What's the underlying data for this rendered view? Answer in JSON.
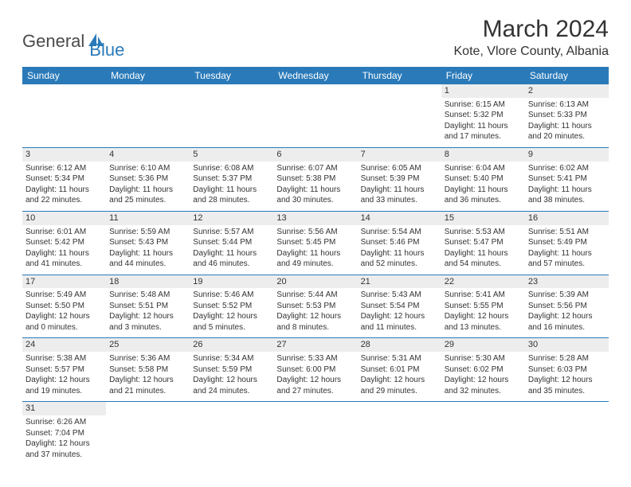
{
  "logo": {
    "text_general": "General",
    "text_blue": "Blue",
    "icon_color": "#2a7ab9"
  },
  "title": "March 2024",
  "location": "Kote, Vlore County, Albania",
  "colors": {
    "header_bg": "#2a7ab9",
    "header_text": "#ffffff",
    "daynum_bg": "#ededed",
    "row_border": "#2a7ab9",
    "body_text": "#333333",
    "page_bg": "#ffffff"
  },
  "typography": {
    "title_fontsize": 30,
    "location_fontsize": 16,
    "weekday_fontsize": 12,
    "cell_fontsize": 10,
    "logo_fontsize": 22
  },
  "weekdays": [
    "Sunday",
    "Monday",
    "Tuesday",
    "Wednesday",
    "Thursday",
    "Friday",
    "Saturday"
  ],
  "weeks": [
    [
      null,
      null,
      null,
      null,
      null,
      {
        "day": "1",
        "sunrise": "Sunrise: 6:15 AM",
        "sunset": "Sunset: 5:32 PM",
        "daylight1": "Daylight: 11 hours",
        "daylight2": "and 17 minutes."
      },
      {
        "day": "2",
        "sunrise": "Sunrise: 6:13 AM",
        "sunset": "Sunset: 5:33 PM",
        "daylight1": "Daylight: 11 hours",
        "daylight2": "and 20 minutes."
      }
    ],
    [
      {
        "day": "3",
        "sunrise": "Sunrise: 6:12 AM",
        "sunset": "Sunset: 5:34 PM",
        "daylight1": "Daylight: 11 hours",
        "daylight2": "and 22 minutes."
      },
      {
        "day": "4",
        "sunrise": "Sunrise: 6:10 AM",
        "sunset": "Sunset: 5:36 PM",
        "daylight1": "Daylight: 11 hours",
        "daylight2": "and 25 minutes."
      },
      {
        "day": "5",
        "sunrise": "Sunrise: 6:08 AM",
        "sunset": "Sunset: 5:37 PM",
        "daylight1": "Daylight: 11 hours",
        "daylight2": "and 28 minutes."
      },
      {
        "day": "6",
        "sunrise": "Sunrise: 6:07 AM",
        "sunset": "Sunset: 5:38 PM",
        "daylight1": "Daylight: 11 hours",
        "daylight2": "and 30 minutes."
      },
      {
        "day": "7",
        "sunrise": "Sunrise: 6:05 AM",
        "sunset": "Sunset: 5:39 PM",
        "daylight1": "Daylight: 11 hours",
        "daylight2": "and 33 minutes."
      },
      {
        "day": "8",
        "sunrise": "Sunrise: 6:04 AM",
        "sunset": "Sunset: 5:40 PM",
        "daylight1": "Daylight: 11 hours",
        "daylight2": "and 36 minutes."
      },
      {
        "day": "9",
        "sunrise": "Sunrise: 6:02 AM",
        "sunset": "Sunset: 5:41 PM",
        "daylight1": "Daylight: 11 hours",
        "daylight2": "and 38 minutes."
      }
    ],
    [
      {
        "day": "10",
        "sunrise": "Sunrise: 6:01 AM",
        "sunset": "Sunset: 5:42 PM",
        "daylight1": "Daylight: 11 hours",
        "daylight2": "and 41 minutes."
      },
      {
        "day": "11",
        "sunrise": "Sunrise: 5:59 AM",
        "sunset": "Sunset: 5:43 PM",
        "daylight1": "Daylight: 11 hours",
        "daylight2": "and 44 minutes."
      },
      {
        "day": "12",
        "sunrise": "Sunrise: 5:57 AM",
        "sunset": "Sunset: 5:44 PM",
        "daylight1": "Daylight: 11 hours",
        "daylight2": "and 46 minutes."
      },
      {
        "day": "13",
        "sunrise": "Sunrise: 5:56 AM",
        "sunset": "Sunset: 5:45 PM",
        "daylight1": "Daylight: 11 hours",
        "daylight2": "and 49 minutes."
      },
      {
        "day": "14",
        "sunrise": "Sunrise: 5:54 AM",
        "sunset": "Sunset: 5:46 PM",
        "daylight1": "Daylight: 11 hours",
        "daylight2": "and 52 minutes."
      },
      {
        "day": "15",
        "sunrise": "Sunrise: 5:53 AM",
        "sunset": "Sunset: 5:47 PM",
        "daylight1": "Daylight: 11 hours",
        "daylight2": "and 54 minutes."
      },
      {
        "day": "16",
        "sunrise": "Sunrise: 5:51 AM",
        "sunset": "Sunset: 5:49 PM",
        "daylight1": "Daylight: 11 hours",
        "daylight2": "and 57 minutes."
      }
    ],
    [
      {
        "day": "17",
        "sunrise": "Sunrise: 5:49 AM",
        "sunset": "Sunset: 5:50 PM",
        "daylight1": "Daylight: 12 hours",
        "daylight2": "and 0 minutes."
      },
      {
        "day": "18",
        "sunrise": "Sunrise: 5:48 AM",
        "sunset": "Sunset: 5:51 PM",
        "daylight1": "Daylight: 12 hours",
        "daylight2": "and 3 minutes."
      },
      {
        "day": "19",
        "sunrise": "Sunrise: 5:46 AM",
        "sunset": "Sunset: 5:52 PM",
        "daylight1": "Daylight: 12 hours",
        "daylight2": "and 5 minutes."
      },
      {
        "day": "20",
        "sunrise": "Sunrise: 5:44 AM",
        "sunset": "Sunset: 5:53 PM",
        "daylight1": "Daylight: 12 hours",
        "daylight2": "and 8 minutes."
      },
      {
        "day": "21",
        "sunrise": "Sunrise: 5:43 AM",
        "sunset": "Sunset: 5:54 PM",
        "daylight1": "Daylight: 12 hours",
        "daylight2": "and 11 minutes."
      },
      {
        "day": "22",
        "sunrise": "Sunrise: 5:41 AM",
        "sunset": "Sunset: 5:55 PM",
        "daylight1": "Daylight: 12 hours",
        "daylight2": "and 13 minutes."
      },
      {
        "day": "23",
        "sunrise": "Sunrise: 5:39 AM",
        "sunset": "Sunset: 5:56 PM",
        "daylight1": "Daylight: 12 hours",
        "daylight2": "and 16 minutes."
      }
    ],
    [
      {
        "day": "24",
        "sunrise": "Sunrise: 5:38 AM",
        "sunset": "Sunset: 5:57 PM",
        "daylight1": "Daylight: 12 hours",
        "daylight2": "and 19 minutes."
      },
      {
        "day": "25",
        "sunrise": "Sunrise: 5:36 AM",
        "sunset": "Sunset: 5:58 PM",
        "daylight1": "Daylight: 12 hours",
        "daylight2": "and 21 minutes."
      },
      {
        "day": "26",
        "sunrise": "Sunrise: 5:34 AM",
        "sunset": "Sunset: 5:59 PM",
        "daylight1": "Daylight: 12 hours",
        "daylight2": "and 24 minutes."
      },
      {
        "day": "27",
        "sunrise": "Sunrise: 5:33 AM",
        "sunset": "Sunset: 6:00 PM",
        "daylight1": "Daylight: 12 hours",
        "daylight2": "and 27 minutes."
      },
      {
        "day": "28",
        "sunrise": "Sunrise: 5:31 AM",
        "sunset": "Sunset: 6:01 PM",
        "daylight1": "Daylight: 12 hours",
        "daylight2": "and 29 minutes."
      },
      {
        "day": "29",
        "sunrise": "Sunrise: 5:30 AM",
        "sunset": "Sunset: 6:02 PM",
        "daylight1": "Daylight: 12 hours",
        "daylight2": "and 32 minutes."
      },
      {
        "day": "30",
        "sunrise": "Sunrise: 5:28 AM",
        "sunset": "Sunset: 6:03 PM",
        "daylight1": "Daylight: 12 hours",
        "daylight2": "and 35 minutes."
      }
    ],
    [
      {
        "day": "31",
        "sunrise": "Sunrise: 6:26 AM",
        "sunset": "Sunset: 7:04 PM",
        "daylight1": "Daylight: 12 hours",
        "daylight2": "and 37 minutes."
      },
      null,
      null,
      null,
      null,
      null,
      null
    ]
  ]
}
